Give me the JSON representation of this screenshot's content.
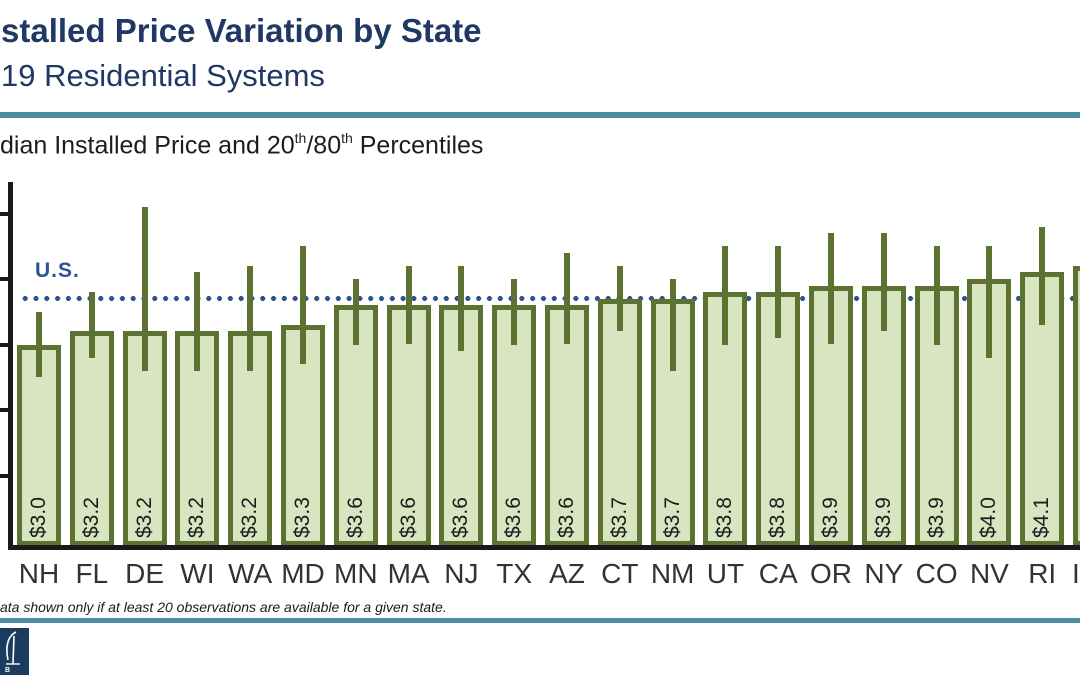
{
  "slide": {
    "title_line1": "stalled Price Variation by State",
    "title_line2": "19 Residential Systems",
    "footnote": "ata shown only if at least 20 observations are available for a given state.",
    "logo_text": "B"
  },
  "chart": {
    "heading_parts": {
      "a": "dian Installed Price and 20",
      "sup_a": "th",
      "b": "/80",
      "sup_b": "th",
      "c": " Percentiles"
    },
    "us_label": "U.S.",
    "next_label_fragment": "I"
  },
  "colors": {
    "navy_title": "#1f3864",
    "teal_divider": "#4a8ca1",
    "bar_fill": "#d9e5c1",
    "bar_border": "#5b7233",
    "us_line_blue": "#2d5492",
    "axis_black": "#1a1a1a",
    "label_gray": "#333333"
  },
  "chart_data": {
    "type": "bar",
    "title": "dian Installed Price and 20th/80th Percentiles",
    "subtitle_context": "19 Residential Systems",
    "ylim": [
      0,
      5.5
    ],
    "yticks": [
      1,
      2,
      3,
      4,
      5
    ],
    "ytick_labels_visible": false,
    "grid": false,
    "us_reference_line": 3.7,
    "bars": [
      {
        "state": "NH",
        "median": 3.0,
        "label": "$3.0",
        "p20": 2.5,
        "p80": 3.5
      },
      {
        "state": "FL",
        "median": 3.2,
        "label": "$3.2",
        "p20": 2.8,
        "p80": 3.8
      },
      {
        "state": "DE",
        "median": 3.2,
        "label": "$3.2",
        "p20": 2.6,
        "p80": 5.1
      },
      {
        "state": "WI",
        "median": 3.2,
        "label": "$3.2",
        "p20": 2.6,
        "p80": 4.1
      },
      {
        "state": "WA",
        "median": 3.2,
        "label": "$3.2",
        "p20": 2.6,
        "p80": 4.2
      },
      {
        "state": "MD",
        "median": 3.3,
        "label": "$3.3",
        "p20": 2.7,
        "p80": 4.5
      },
      {
        "state": "MN",
        "median": 3.6,
        "label": "$3.6",
        "p20": 3.0,
        "p80": 4.0
      },
      {
        "state": "MA",
        "median": 3.6,
        "label": "$3.6",
        "p20": 3.0,
        "p80": 4.2
      },
      {
        "state": "NJ",
        "median": 3.6,
        "label": "$3.6",
        "p20": 2.9,
        "p80": 4.2
      },
      {
        "state": "TX",
        "median": 3.6,
        "label": "$3.6",
        "p20": 3.0,
        "p80": 4.0
      },
      {
        "state": "AZ",
        "median": 3.6,
        "label": "$3.6",
        "p20": 3.0,
        "p80": 4.4
      },
      {
        "state": "CT",
        "median": 3.7,
        "label": "$3.7",
        "p20": 3.2,
        "p80": 4.2
      },
      {
        "state": "NM",
        "median": 3.7,
        "label": "$3.7",
        "p20": 2.6,
        "p80": 4.0
      },
      {
        "state": "UT",
        "median": 3.8,
        "label": "$3.8",
        "p20": 3.0,
        "p80": 4.5
      },
      {
        "state": "CA",
        "median": 3.8,
        "label": "$3.8",
        "p20": 3.1,
        "p80": 4.5
      },
      {
        "state": "OR",
        "median": 3.9,
        "label": "$3.9",
        "p20": 3.0,
        "p80": 4.7
      },
      {
        "state": "NY",
        "median": 3.9,
        "label": "$3.9",
        "p20": 3.2,
        "p80": 4.7
      },
      {
        "state": "CO",
        "median": 3.9,
        "label": "$3.9",
        "p20": 3.0,
        "p80": 4.5
      },
      {
        "state": "NV",
        "median": 4.0,
        "label": "$4.0",
        "p20": 2.8,
        "p80": 4.5
      },
      {
        "state": "RI",
        "median": 4.1,
        "label": "$4.1",
        "p20": 3.3,
        "p80": 4.8
      },
      {
        "state": "",
        "median": 4.2,
        "label": "",
        "partial": true
      }
    ]
  }
}
